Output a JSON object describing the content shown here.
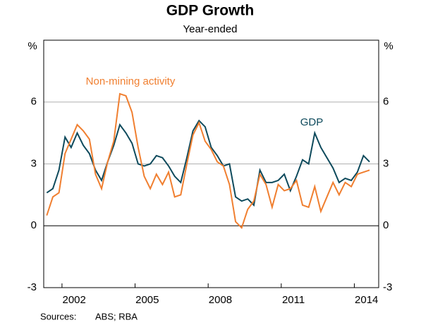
{
  "chart_data": {
    "type": "line",
    "title": "GDP Growth",
    "subtitle": "Year-ended",
    "y_unit": "%",
    "source_label": "Sources:",
    "source": "ABS; RBA",
    "x": [
      2001.375,
      2001.625,
      2001.875,
      2002.125,
      2002.375,
      2002.625,
      2002.875,
      2003.125,
      2003.375,
      2003.625,
      2003.875,
      2004.125,
      2004.375,
      2004.625,
      2004.875,
      2005.125,
      2005.375,
      2005.625,
      2005.875,
      2006.125,
      2006.375,
      2006.625,
      2006.875,
      2007.125,
      2007.375,
      2007.625,
      2007.875,
      2008.125,
      2008.375,
      2008.625,
      2008.875,
      2009.125,
      2009.375,
      2009.625,
      2009.875,
      2010.125,
      2010.375,
      2010.625,
      2010.875,
      2011.125,
      2011.375,
      2011.625,
      2011.875,
      2012.125,
      2012.375,
      2012.625,
      2012.875,
      2013.125,
      2013.375,
      2013.625,
      2013.875,
      2014.125,
      2014.375,
      2014.625
    ],
    "series": [
      {
        "name": "GDP",
        "color": "#0e4a5c",
        "values": [
          1.6,
          1.8,
          2.7,
          4.3,
          3.8,
          4.5,
          3.9,
          3.5,
          2.7,
          2.2,
          3.1,
          3.9,
          4.9,
          4.5,
          4.0,
          3.0,
          2.9,
          3.0,
          3.4,
          3.3,
          2.9,
          2.4,
          2.1,
          3.3,
          4.6,
          5.1,
          4.8,
          3.8,
          3.4,
          2.9,
          3.0,
          1.4,
          1.2,
          1.3,
          1.0,
          2.7,
          2.1,
          2.1,
          2.2,
          2.5,
          1.7,
          2.4,
          3.2,
          3.0,
          4.5,
          3.8,
          3.3,
          2.8,
          2.1,
          2.3,
          2.2,
          2.6,
          3.4,
          3.1
        ]
      },
      {
        "name": "Non-mining activity",
        "color": "#f07f30",
        "values": [
          0.5,
          1.4,
          1.6,
          3.5,
          4.2,
          4.9,
          4.6,
          4.2,
          2.5,
          1.8,
          3.1,
          4.1,
          6.4,
          6.3,
          5.5,
          3.8,
          2.4,
          1.8,
          2.5,
          2.0,
          2.6,
          1.4,
          1.5,
          3.0,
          4.4,
          5.0,
          4.1,
          3.7,
          3.1,
          2.9,
          2.0,
          0.2,
          -0.1,
          0.8,
          1.2,
          2.5,
          2.0,
          0.9,
          2.0,
          1.7,
          1.8,
          2.2,
          1.0,
          0.9,
          1.9,
          0.7,
          1.4,
          2.1,
          1.5,
          2.1,
          1.9,
          2.5,
          2.6,
          2.7
        ]
      }
    ],
    "xlim": [
      2001.25,
      2015
    ],
    "xticks": [
      2002,
      2005,
      2008,
      2011,
      2014
    ],
    "ylim": [
      -3,
      9
    ],
    "yticks": [
      -3,
      0,
      3,
      6
    ],
    "grid": true
  }
}
